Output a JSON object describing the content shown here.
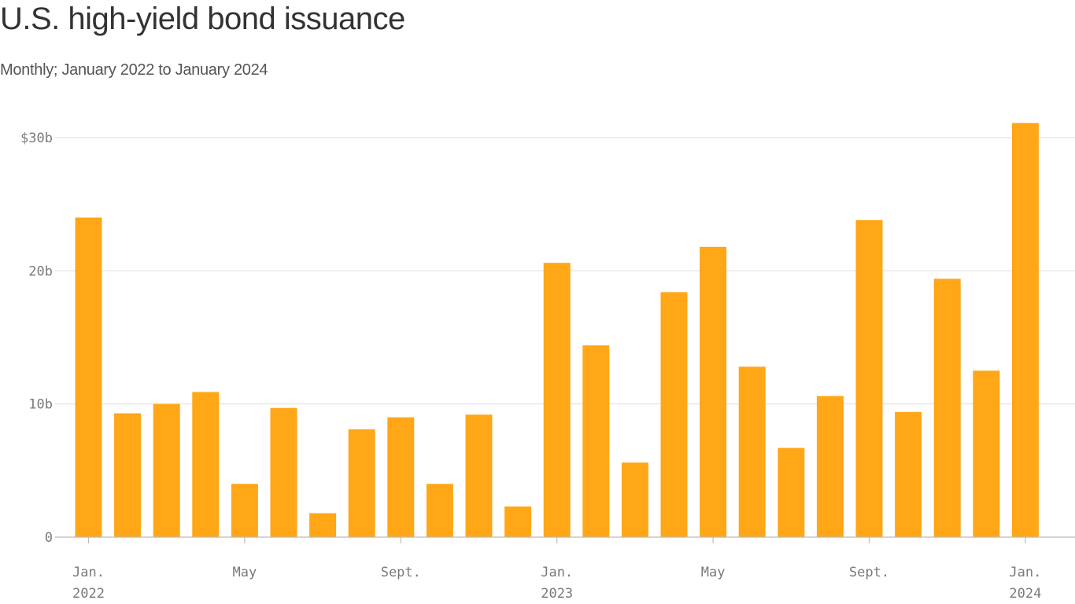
{
  "chart_data": {
    "type": "bar",
    "title": "U.S. high-yield bond issuance",
    "subtitle": "Monthly; January 2022 to January 2024",
    "xlabel": "",
    "ylabel": "",
    "ylim": [
      0,
      30
    ],
    "grid": true,
    "legend": "none",
    "color": "#ffa717",
    "y_ticks": [
      {
        "value": 0,
        "label": "0"
      },
      {
        "value": 10,
        "label": "10b"
      },
      {
        "value": 20,
        "label": "20b"
      },
      {
        "value": 30,
        "label": "$30b"
      }
    ],
    "categories": [
      "Jan. 2022",
      "Feb. 2022",
      "Mar. 2022",
      "Apr. 2022",
      "May 2022",
      "Jun. 2022",
      "Jul. 2022",
      "Aug. 2022",
      "Sept. 2022",
      "Oct. 2022",
      "Nov. 2022",
      "Dec. 2022",
      "Jan. 2023",
      "Feb. 2023",
      "Mar. 2023",
      "Apr. 2023",
      "May 2023",
      "Jun. 2023",
      "Jul. 2023",
      "Aug. 2023",
      "Sept. 2023",
      "Oct. 2023",
      "Nov. 2023",
      "Dec. 2023",
      "Jan. 2024"
    ],
    "values": [
      24.0,
      9.3,
      10.0,
      10.9,
      4.0,
      9.7,
      1.8,
      8.1,
      9.0,
      4.0,
      9.2,
      2.3,
      20.6,
      14.4,
      5.6,
      18.4,
      21.8,
      12.8,
      6.7,
      10.6,
      23.8,
      9.4,
      19.4,
      12.5,
      31.1
    ],
    "x_ticks": [
      {
        "index": 0,
        "line1": "Jan.",
        "line2": "2022"
      },
      {
        "index": 4,
        "line1": "May",
        "line2": ""
      },
      {
        "index": 8,
        "line1": "Sept.",
        "line2": ""
      },
      {
        "index": 12,
        "line1": "Jan.",
        "line2": "2023"
      },
      {
        "index": 16,
        "line1": "May",
        "line2": ""
      },
      {
        "index": 20,
        "line1": "Sept.",
        "line2": ""
      },
      {
        "index": 24,
        "line1": "Jan.",
        "line2": "2024"
      }
    ]
  }
}
